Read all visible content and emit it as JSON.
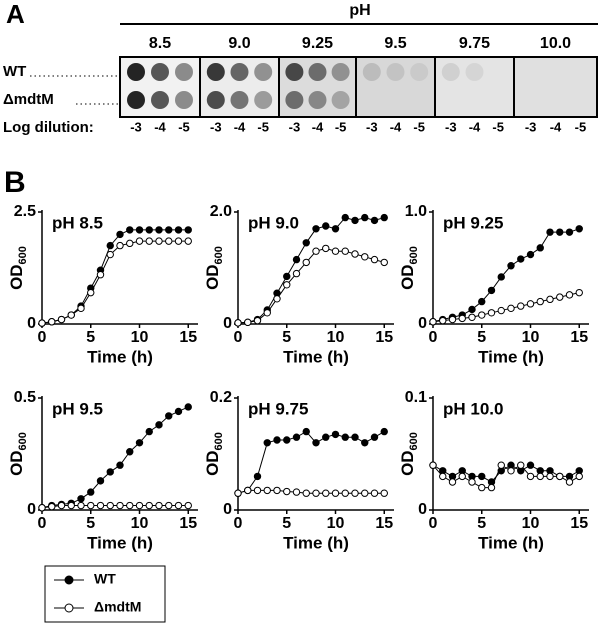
{
  "panel_a": {
    "label": "A",
    "axis_title": "pH",
    "columns": [
      "8.5",
      "9.0",
      "9.25",
      "9.5",
      "9.75",
      "10.0"
    ],
    "rows": [
      "WT",
      "ΔmdtM"
    ],
    "dilution_label": "Log dilution:",
    "dilutions": [
      "-3",
      "-4",
      "-5"
    ]
  },
  "panel_b": {
    "label": "B"
  },
  "chart_data": [
    {
      "type": "line",
      "title": "pH 8.5",
      "xlabel": "Time (h)",
      "ylabel": "OD",
      "ylabel_sub": "600",
      "x": [
        0,
        1,
        2,
        3,
        4,
        5,
        6,
        7,
        8,
        9,
        10,
        11,
        12,
        13,
        14,
        15
      ],
      "xlim": [
        0,
        16
      ],
      "xticks": [
        0,
        5,
        10,
        15
      ],
      "ylim": [
        0,
        2.5
      ],
      "yticks": [
        0,
        2.5
      ],
      "series": [
        {
          "name": "WT",
          "color": "#000000",
          "values": [
            0.02,
            0.05,
            0.1,
            0.2,
            0.4,
            0.8,
            1.2,
            1.75,
            2.0,
            2.1,
            2.1,
            2.1,
            2.1,
            2.1,
            2.1,
            2.1
          ]
        },
        {
          "name": "ΔmdtM",
          "color": "#ffffff",
          "values": [
            0.02,
            0.05,
            0.1,
            0.2,
            0.35,
            0.7,
            1.1,
            1.55,
            1.75,
            1.8,
            1.85,
            1.85,
            1.85,
            1.85,
            1.85,
            1.85
          ]
        }
      ]
    },
    {
      "type": "line",
      "title": "pH 9.0",
      "xlabel": "Time (h)",
      "ylabel": "OD",
      "ylabel_sub": "600",
      "x": [
        0,
        1,
        2,
        3,
        4,
        5,
        6,
        7,
        8,
        9,
        10,
        11,
        12,
        13,
        14,
        15
      ],
      "xlim": [
        0,
        16
      ],
      "xticks": [
        0,
        5,
        10,
        15
      ],
      "ylim": [
        0,
        2.0
      ],
      "yticks": [
        0,
        {
          "value": 2,
          "label": "2.0"
        }
      ],
      "series": [
        {
          "name": "WT",
          "color": "#000000",
          "values": [
            0.02,
            0.03,
            0.08,
            0.25,
            0.55,
            0.85,
            1.15,
            1.45,
            1.7,
            1.75,
            1.7,
            1.9,
            1.85,
            1.9,
            1.85,
            1.9
          ]
        },
        {
          "name": "ΔmdtM",
          "color": "#ffffff",
          "values": [
            0.02,
            0.03,
            0.06,
            0.2,
            0.45,
            0.7,
            0.9,
            1.1,
            1.3,
            1.35,
            1.3,
            1.3,
            1.25,
            1.2,
            1.15,
            1.1
          ]
        }
      ]
    },
    {
      "type": "line",
      "title": "pH 9.25",
      "xlabel": "Time (h)",
      "ylabel": "OD",
      "ylabel_sub": "600",
      "x": [
        0,
        1,
        2,
        3,
        4,
        5,
        6,
        7,
        8,
        9,
        10,
        11,
        12,
        13,
        14,
        15
      ],
      "xlim": [
        0,
        16
      ],
      "xticks": [
        0,
        5,
        10,
        15
      ],
      "ylim": [
        0,
        1.0
      ],
      "yticks": [
        0,
        {
          "value": 1,
          "label": "1.0"
        }
      ],
      "series": [
        {
          "name": "WT",
          "color": "#000000",
          "values": [
            0.02,
            0.04,
            0.06,
            0.08,
            0.13,
            0.2,
            0.3,
            0.42,
            0.52,
            0.58,
            0.62,
            0.68,
            0.82,
            0.82,
            0.82,
            0.85
          ]
        },
        {
          "name": "ΔmdtM",
          "color": "#ffffff",
          "values": [
            0.02,
            0.03,
            0.04,
            0.05,
            0.06,
            0.08,
            0.1,
            0.12,
            0.14,
            0.16,
            0.18,
            0.2,
            0.22,
            0.24,
            0.26,
            0.28
          ]
        }
      ]
    },
    {
      "type": "line",
      "title": "pH 9.5",
      "xlabel": "Time (h)",
      "ylabel": "OD",
      "ylabel_sub": "600",
      "x": [
        0,
        1,
        2,
        3,
        4,
        5,
        6,
        7,
        8,
        9,
        10,
        11,
        12,
        13,
        14,
        15
      ],
      "xlim": [
        0,
        16
      ],
      "xticks": [
        0,
        5,
        10,
        15
      ],
      "ylim": [
        0,
        0.5
      ],
      "yticks": [
        0,
        0.5
      ],
      "series": [
        {
          "name": "WT",
          "color": "#000000",
          "values": [
            0.01,
            0.02,
            0.025,
            0.03,
            0.05,
            0.08,
            0.13,
            0.17,
            0.2,
            0.26,
            0.3,
            0.35,
            0.38,
            0.42,
            0.44,
            0.46
          ]
        },
        {
          "name": "ΔmdtM",
          "color": "#ffffff",
          "values": [
            0.01,
            0.015,
            0.02,
            0.02,
            0.02,
            0.02,
            0.02,
            0.02,
            0.02,
            0.02,
            0.02,
            0.02,
            0.02,
            0.02,
            0.02,
            0.02
          ]
        }
      ]
    },
    {
      "type": "line",
      "title": "pH 9.75",
      "xlabel": "Time (h)",
      "ylabel": "OD",
      "ylabel_sub": "600",
      "x": [
        0,
        1,
        2,
        3,
        4,
        5,
        6,
        7,
        8,
        9,
        10,
        11,
        12,
        13,
        14,
        15
      ],
      "xlim": [
        0,
        16
      ],
      "xticks": [
        0,
        5,
        10,
        15
      ],
      "ylim": [
        0,
        0.2
      ],
      "yticks": [
        0,
        0.2
      ],
      "series": [
        {
          "name": "WT",
          "color": "#000000",
          "values": [
            0.03,
            0.035,
            0.06,
            0.12,
            0.125,
            0.125,
            0.13,
            0.14,
            0.12,
            0.13,
            0.135,
            0.13,
            0.13,
            0.12,
            0.13,
            0.14
          ]
        },
        {
          "name": "ΔmdtM",
          "color": "#ffffff",
          "values": [
            0.03,
            0.035,
            0.035,
            0.035,
            0.035,
            0.033,
            0.032,
            0.03,
            0.03,
            0.03,
            0.03,
            0.03,
            0.03,
            0.03,
            0.03,
            0.03
          ]
        }
      ]
    },
    {
      "type": "line",
      "title": "pH 10.0",
      "xlabel": "Time (h)",
      "ylabel": "OD",
      "ylabel_sub": "600",
      "x": [
        0,
        1,
        2,
        3,
        4,
        5,
        6,
        7,
        8,
        9,
        10,
        11,
        12,
        13,
        14,
        15
      ],
      "xlim": [
        0,
        16
      ],
      "xticks": [
        0,
        5,
        10,
        15
      ],
      "ylim": [
        0,
        0.1
      ],
      "yticks": [
        0,
        0.1
      ],
      "series": [
        {
          "name": "WT",
          "color": "#000000",
          "values": [
            0.04,
            0.035,
            0.03,
            0.035,
            0.03,
            0.03,
            0.025,
            0.035,
            0.04,
            0.035,
            0.04,
            0.035,
            0.035,
            0.03,
            0.03,
            0.035
          ]
        },
        {
          "name": "ΔmdtM",
          "color": "#ffffff",
          "values": [
            0.04,
            0.03,
            0.025,
            0.03,
            0.025,
            0.02,
            0.02,
            0.04,
            0.035,
            0.04,
            0.03,
            0.03,
            0.03,
            0.03,
            0.025,
            0.03
          ]
        }
      ]
    }
  ]
}
